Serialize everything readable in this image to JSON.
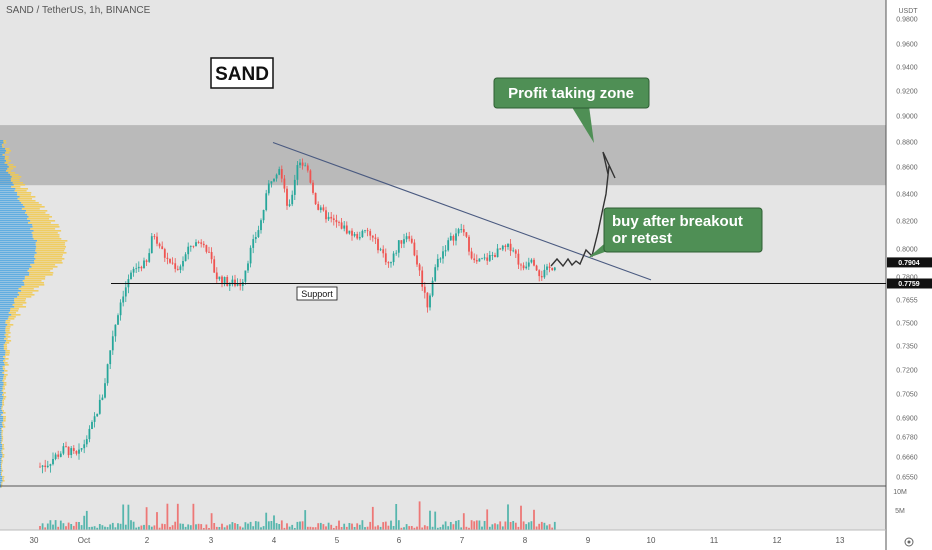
{
  "chart_data": {
    "type": "candlestick",
    "title": "SAND / TetherUS, 1h, BINANCE",
    "currency": "USDT",
    "y_ticks": [
      "0.9800",
      "0.9600",
      "0.9400",
      "0.9200",
      "0.9000",
      "0.8800",
      "0.8600",
      "0.8400",
      "0.8200",
      "0.8000",
      "0.7800",
      "0.7655",
      "0.7500",
      "0.7350",
      "0.7200",
      "0.7050",
      "0.6900",
      "0.6780",
      "0.6660",
      "0.6550"
    ],
    "x_ticks": [
      "30",
      "Oct",
      "2",
      "3",
      "4",
      "5",
      "6",
      "7",
      "8",
      "9",
      "10",
      "11",
      "12",
      "13"
    ],
    "volume_ticks": [
      "10M",
      "5M"
    ],
    "price_labels": [
      {
        "text": "0.7904",
        "color": "#111111"
      },
      {
        "text": "0.7759",
        "color": "#111111"
      }
    ],
    "support_label": "Support",
    "symbol_box": "SAND",
    "callouts": [
      {
        "text": "Profit taking zone",
        "color": "#4f8f55"
      },
      {
        "text": "buy after breakout\nor retest",
        "color": "#4f8f55"
      }
    ],
    "profit_zone": [
      0.8465,
      0.893
    ],
    "support_level": 0.7759,
    "trendline": [
      {
        "day": 4.0,
        "price": 0.8796
      },
      {
        "day": 10.0,
        "price": 0.7782
      }
    ],
    "projected_path": [
      0.7904,
      0.7995,
      0.82,
      0.858
    ],
    "colors": {
      "up": "#26a69a",
      "down": "#ef5350",
      "zone": "#b3b3b3",
      "callout": "#4f8f55",
      "profile_blue": "#4aa3df",
      "profile_yellow": "#f2c94c"
    },
    "price_series": [
      {
        "day": 0.1,
        "price": 0.658
      },
      {
        "day": 0.4,
        "price": 0.662
      },
      {
        "day": 0.7,
        "price": 0.671
      },
      {
        "day": 0.9,
        "price": 0.666
      },
      {
        "day": 1.1,
        "price": 0.682
      },
      {
        "day": 1.3,
        "price": 0.705
      },
      {
        "day": 1.45,
        "price": 0.741
      },
      {
        "day": 1.6,
        "price": 0.768
      },
      {
        "day": 1.8,
        "price": 0.786
      },
      {
        "day": 2.0,
        "price": 0.79
      },
      {
        "day": 2.1,
        "price": 0.812
      },
      {
        "day": 2.3,
        "price": 0.793
      },
      {
        "day": 2.5,
        "price": 0.786
      },
      {
        "day": 2.7,
        "price": 0.803
      },
      {
        "day": 2.9,
        "price": 0.806
      },
      {
        "day": 3.1,
        "price": 0.78
      },
      {
        "day": 3.3,
        "price": 0.776
      },
      {
        "day": 3.5,
        "price": 0.776
      },
      {
        "day": 3.65,
        "price": 0.8
      },
      {
        "day": 3.8,
        "price": 0.818
      },
      {
        "day": 3.95,
        "price": 0.85
      },
      {
        "day": 4.1,
        "price": 0.86
      },
      {
        "day": 4.25,
        "price": 0.826
      },
      {
        "day": 4.4,
        "price": 0.866
      },
      {
        "day": 4.55,
        "price": 0.858
      },
      {
        "day": 4.7,
        "price": 0.83
      },
      {
        "day": 4.9,
        "price": 0.821
      },
      {
        "day": 5.1,
        "price": 0.816
      },
      {
        "day": 5.3,
        "price": 0.809
      },
      {
        "day": 5.5,
        "price": 0.812
      },
      {
        "day": 5.7,
        "price": 0.8
      },
      {
        "day": 5.85,
        "price": 0.788
      },
      {
        "day": 6.0,
        "price": 0.804
      },
      {
        "day": 6.15,
        "price": 0.812
      },
      {
        "day": 6.3,
        "price": 0.788
      },
      {
        "day": 6.45,
        "price": 0.762
      },
      {
        "day": 6.6,
        "price": 0.791
      },
      {
        "day": 6.8,
        "price": 0.806
      },
      {
        "day": 7.0,
        "price": 0.815
      },
      {
        "day": 7.2,
        "price": 0.79
      },
      {
        "day": 7.4,
        "price": 0.793
      },
      {
        "day": 7.6,
        "price": 0.799
      },
      {
        "day": 7.8,
        "price": 0.802
      },
      {
        "day": 7.95,
        "price": 0.785
      },
      {
        "day": 8.1,
        "price": 0.795
      },
      {
        "day": 8.25,
        "price": 0.781
      },
      {
        "day": 8.5,
        "price": 0.79
      }
    ]
  }
}
